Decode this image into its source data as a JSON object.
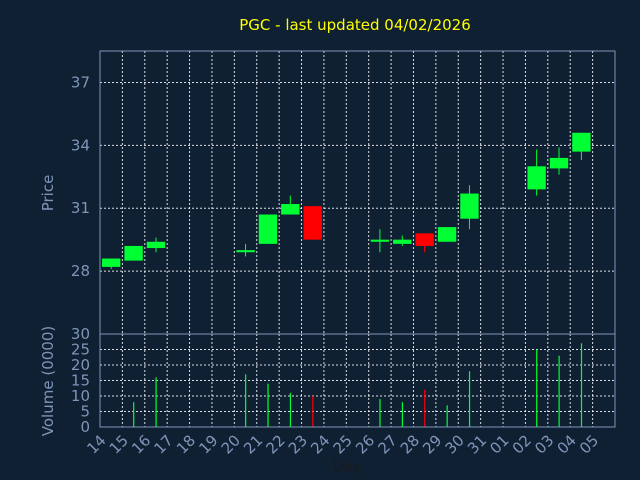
{
  "chart_data": [
    {
      "type": "candlestick",
      "title": "PGC - last updated 04/02/2026",
      "ylabel": "Price",
      "ylim": [
        25,
        38.5
      ],
      "yticks": [
        28,
        31,
        34,
        37
      ],
      "grid": true,
      "categories": [
        "14",
        "15",
        "16",
        "17",
        "18",
        "19",
        "20",
        "21",
        "22",
        "23",
        "24",
        "25",
        "26",
        "27",
        "28",
        "29",
        "30",
        "31",
        "01",
        "02",
        "03",
        "04",
        "05"
      ],
      "candles": [
        {
          "x": "14",
          "open": 28.2,
          "close": 28.6,
          "high": 28.6,
          "low": 28.1,
          "color": "#00ff33"
        },
        {
          "x": "15",
          "open": 28.5,
          "close": 29.2,
          "high": 29.2,
          "low": 28.5,
          "color": "#00ff33"
        },
        {
          "x": "16",
          "open": 29.1,
          "close": 29.4,
          "high": 29.6,
          "low": 28.9,
          "color": "#00ff33"
        },
        {
          "x": "20",
          "open": 28.9,
          "close": 29.0,
          "high": 29.3,
          "low": 28.7,
          "color": "#00ff33"
        },
        {
          "x": "21",
          "open": 29.3,
          "close": 30.7,
          "high": 30.7,
          "low": 29.3,
          "color": "#00ff33"
        },
        {
          "x": "22",
          "open": 30.7,
          "close": 31.2,
          "high": 31.6,
          "low": 30.7,
          "color": "#00ff33"
        },
        {
          "x": "23",
          "open": 31.1,
          "close": 29.5,
          "high": 31.1,
          "low": 29.5,
          "color": "#ff0000"
        },
        {
          "x": "26",
          "open": 29.4,
          "close": 29.5,
          "high": 30.0,
          "low": 28.9,
          "color": "#00ff33"
        },
        {
          "x": "27",
          "open": 29.3,
          "close": 29.5,
          "high": 29.7,
          "low": 29.2,
          "color": "#00ff33"
        },
        {
          "x": "28",
          "open": 29.8,
          "close": 29.2,
          "high": 29.8,
          "low": 28.9,
          "color": "#ff0000"
        },
        {
          "x": "29",
          "open": 29.4,
          "close": 30.1,
          "high": 30.1,
          "low": 29.4,
          "color": "#00ff33"
        },
        {
          "x": "30",
          "open": 30.5,
          "close": 31.7,
          "high": 32.1,
          "low": 30.0,
          "color": "#00ff33"
        },
        {
          "x": "02",
          "open": 31.9,
          "close": 33.0,
          "high": 33.8,
          "low": 31.6,
          "color": "#00ff33"
        },
        {
          "x": "03",
          "open": 32.9,
          "close": 33.4,
          "high": 33.9,
          "low": 32.6,
          "color": "#00ff33"
        },
        {
          "x": "04",
          "open": 33.7,
          "close": 34.6,
          "high": 34.6,
          "low": 33.3,
          "color": "#00ff33"
        }
      ]
    },
    {
      "type": "bar",
      "ylabel": "Volume (0000)",
      "xlabel": "Day",
      "ylim": [
        0,
        30
      ],
      "yticks": [
        0,
        5,
        10,
        15,
        20,
        25,
        30
      ],
      "grid": true,
      "categories": [
        "14",
        "15",
        "16",
        "17",
        "18",
        "19",
        "20",
        "21",
        "22",
        "23",
        "24",
        "25",
        "26",
        "27",
        "28",
        "29",
        "30",
        "31",
        "01",
        "02",
        "03",
        "04",
        "05"
      ],
      "values": [
        0,
        8,
        16,
        0,
        0,
        0,
        17,
        14,
        11,
        10,
        0,
        0,
        9,
        8,
        12,
        7,
        18,
        0,
        0,
        25,
        23,
        27,
        0
      ],
      "bar_colors": [
        "#00ff33",
        "#00ff33",
        "#00ff33",
        "#00ff33",
        "#00ff33",
        "#00ff33",
        "#00ff33",
        "#00ff33",
        "#00ff33",
        "#ff0000",
        "#00ff33",
        "#00ff33",
        "#00ff33",
        "#00ff33",
        "#ff0000",
        "#00ff33",
        "#00ff33",
        "#00ff33",
        "#00ff33",
        "#00ff33",
        "#00ff33",
        "#00ff33",
        "#00ff33"
      ]
    }
  ],
  "colors": {
    "background": "#0f2033",
    "axis_text": "#7f95b8",
    "title": "#ffff00",
    "grid": "#ffffff",
    "up": "#00ff33",
    "down": "#ff0000"
  }
}
